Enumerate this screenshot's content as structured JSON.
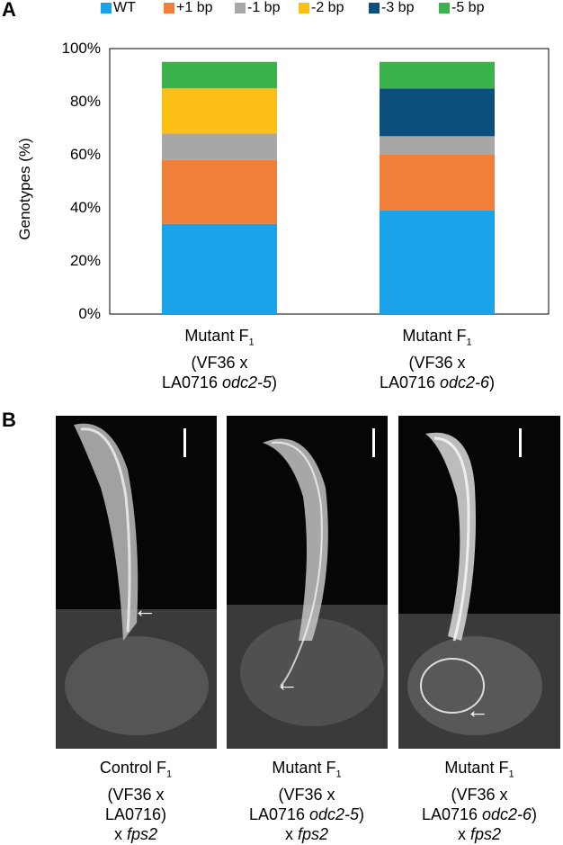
{
  "panel_a": {
    "letter": "A"
  },
  "panel_b": {
    "letter": "B"
  },
  "chart_data": {
    "type": "bar",
    "stacked": true,
    "ylabel": "Genotypes (%)",
    "ylim": [
      0,
      100
    ],
    "yticks": [
      "0%",
      "20%",
      "40%",
      "60%",
      "80%",
      "100%"
    ],
    "legend_position": "top",
    "categories": [
      {
        "line1": "Mutant F",
        "sub": "1",
        "line2": "(VF36 x",
        "line3a": "LA0716 ",
        "line3i": "odc2-5",
        "line3b": ")"
      },
      {
        "line1": "Mutant F",
        "sub": "1",
        "line2": "(VF36 x",
        "line3a": "LA0716 ",
        "line3i": "odc2-6",
        "line3b": ")"
      }
    ],
    "series": [
      {
        "name": "WT",
        "color": "#1aa3e8",
        "values": [
          34,
          39
        ]
      },
      {
        "name": "+1 bp",
        "color": "#f07f3a",
        "values": [
          24,
          21
        ]
      },
      {
        "name": "-1 bp",
        "color": "#a7a7a7",
        "values": [
          10,
          7
        ]
      },
      {
        "name": "-2 bp",
        "color": "#fcbf15",
        "values": [
          17,
          0
        ]
      },
      {
        "name": "-3 bp",
        "color": "#0b4f7d",
        "values": [
          0,
          18
        ]
      },
      {
        "name": "-5 bp",
        "color": "#3cb34a",
        "values": [
          10,
          10
        ]
      }
    ]
  },
  "photos": [
    {
      "cap1": "Control F",
      "sub": "1",
      "cap2": "(VF36 x",
      "cap3a": "LA0716)",
      "cap3i": "",
      "cap3b": "",
      "cap4a": "x ",
      "cap4i": "fps2",
      "arrow": "arrow-icon",
      "scale": "scale-bar"
    },
    {
      "cap1": "Mutant F",
      "sub": "1",
      "cap2": "(VF36 x",
      "cap3a": "LA0716 ",
      "cap3i": "odc2-5",
      "cap3b": ")",
      "cap4a": "x ",
      "cap4i": "fps2",
      "arrow": "arrow-icon",
      "scale": "scale-bar"
    },
    {
      "cap1": "Mutant F",
      "sub": "1",
      "cap2": "(VF36 x",
      "cap3a": "LA0716 ",
      "cap3i": "odc2-6",
      "cap3b": ")",
      "cap4a": "x ",
      "cap4i": "fps2",
      "arrow": "arrow-icon",
      "scale": "scale-bar"
    }
  ]
}
